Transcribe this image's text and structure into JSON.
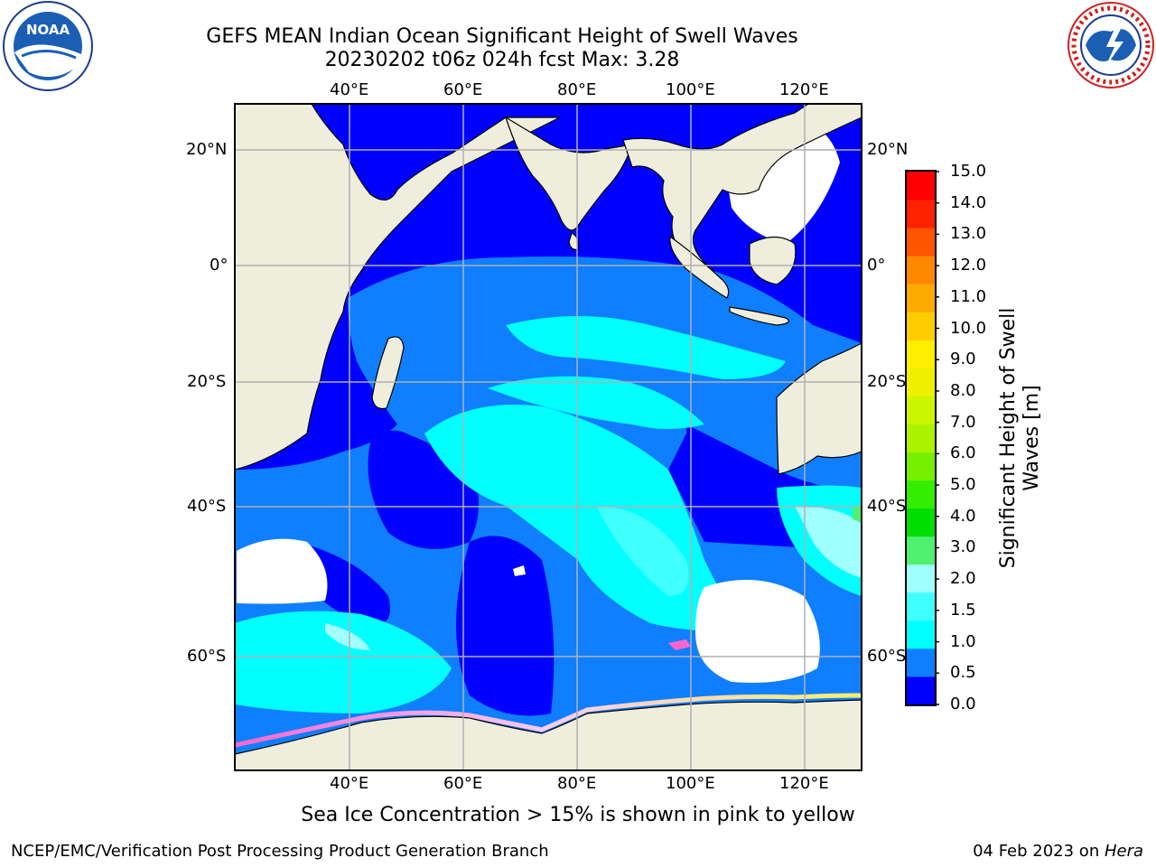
{
  "title": {
    "line1": "GEFS MEAN Indian Ocean Significant Height of Swell Waves",
    "line2": "20230202 t06z 024h fcst   Max: 3.28"
  },
  "map": {
    "lon_labels": [
      "40°E",
      "60°E",
      "80°E",
      "100°E",
      "120°E"
    ],
    "lat_labels_left": [
      "20°N",
      "0°",
      "20°S",
      "40°S",
      "60°S"
    ],
    "lat_labels_right": [
      "20°N",
      "0°",
      "20°S",
      "40°S",
      "60°S"
    ],
    "colors": {
      "land": "#efeedd",
      "grid": "#b0b0b0",
      "no_data": "#ffffff"
    }
  },
  "colorbar": {
    "title": "Significant Height of Swell\nWaves [m]",
    "ticks": [
      "15.0",
      "14.0",
      "13.0",
      "12.0",
      "11.0",
      "10.0",
      "9.0",
      "8.0",
      "7.0",
      "6.0",
      "5.0",
      "4.0",
      "3.0",
      "2.0",
      "1.5",
      "1.0",
      "0.5",
      "0.0"
    ],
    "colors": [
      "#0000ff",
      "#0f7fff",
      "#00ffff",
      "#40ffff",
      "#a0ffff",
      "#50f070",
      "#00dd00",
      "#33ee00",
      "#77f000",
      "#aaf200",
      "#ccf500",
      "#eef000",
      "#ffee00",
      "#ffcc00",
      "#ffaa00",
      "#ff8800",
      "#ff5500",
      "#ff2200",
      "#ff0000"
    ]
  },
  "footer": {
    "note": "Sea Ice Concentration > 15% is shown in pink to yellow",
    "credit": "NCEP/EMC/Verification Post Processing Product Generation Branch",
    "date_prefix": "04 Feb 2023 on ",
    "date_host": "Hera"
  },
  "logos": {
    "noaa": "noaa-logo",
    "nws": "nws-logo"
  }
}
